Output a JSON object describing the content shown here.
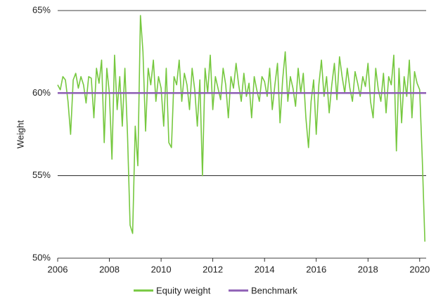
{
  "chart_data": {
    "type": "line",
    "ylabel": "Weight",
    "xlim": [
      2006,
      2020.25
    ],
    "xticks": [
      2006,
      2008,
      2010,
      2012,
      2014,
      2016,
      2018,
      2020
    ],
    "ylim": [
      50,
      65
    ],
    "yticks": [
      {
        "value": 50,
        "label": "50%"
      },
      {
        "value": 55,
        "label": "55%"
      },
      {
        "value": 60,
        "label": "60%"
      },
      {
        "value": 65,
        "label": "65%"
      }
    ],
    "grid": true,
    "legend": "bottom",
    "series": [
      {
        "name": "Equity weight",
        "color": "#76c83f",
        "x": [
          2006.0,
          2006.1,
          2006.2,
          2006.3,
          2006.4,
          2006.5,
          2006.6,
          2006.7,
          2006.8,
          2006.9,
          2007.0,
          2007.1,
          2007.2,
          2007.3,
          2007.4,
          2007.5,
          2007.6,
          2007.7,
          2007.8,
          2007.9,
          2008.0,
          2008.1,
          2008.2,
          2008.3,
          2008.4,
          2008.5,
          2008.6,
          2008.7,
          2008.8,
          2008.9,
          2009.0,
          2009.1,
          2009.2,
          2009.3,
          2009.4,
          2009.5,
          2009.6,
          2009.7,
          2009.8,
          2009.9,
          2010.0,
          2010.1,
          2010.2,
          2010.3,
          2010.4,
          2010.5,
          2010.6,
          2010.7,
          2010.8,
          2010.9,
          2011.0,
          2011.1,
          2011.2,
          2011.3,
          2011.4,
          2011.5,
          2011.6,
          2011.7,
          2011.8,
          2011.9,
          2012.0,
          2012.1,
          2012.2,
          2012.3,
          2012.4,
          2012.5,
          2012.6,
          2012.7,
          2012.8,
          2012.9,
          2013.0,
          2013.1,
          2013.2,
          2013.3,
          2013.4,
          2013.5,
          2013.6,
          2013.7,
          2013.8,
          2013.9,
          2014.0,
          2014.1,
          2014.2,
          2014.3,
          2014.4,
          2014.5,
          2014.6,
          2014.7,
          2014.8,
          2014.9,
          2015.0,
          2015.1,
          2015.2,
          2015.3,
          2015.4,
          2015.5,
          2015.6,
          2015.7,
          2015.8,
          2015.9,
          2016.0,
          2016.1,
          2016.2,
          2016.3,
          2016.4,
          2016.5,
          2016.6,
          2016.7,
          2016.8,
          2016.9,
          2017.0,
          2017.1,
          2017.2,
          2017.3,
          2017.4,
          2017.5,
          2017.6,
          2017.7,
          2017.8,
          2017.9,
          2018.0,
          2018.1,
          2018.2,
          2018.3,
          2018.4,
          2018.5,
          2018.6,
          2018.7,
          2018.8,
          2018.9,
          2019.0,
          2019.1,
          2019.2,
          2019.3,
          2019.4,
          2019.5,
          2019.6,
          2019.7,
          2019.8,
          2019.9,
          2020.0,
          2020.1,
          2020.2
        ],
        "values": [
          60.5,
          60.2,
          61,
          60.8,
          59.5,
          57.5,
          60.8,
          61.2,
          60.3,
          61,
          60.5,
          59.4,
          61,
          60.9,
          58.5,
          61.5,
          60.6,
          62,
          57,
          61.5,
          60,
          56,
          62.3,
          59,
          61,
          58,
          61.5,
          57.5,
          52,
          51.5,
          58,
          55.6,
          64.7,
          62.5,
          57.7,
          61.5,
          60.5,
          62,
          59.5,
          61,
          60.3,
          58,
          61.5,
          57,
          56.7,
          61,
          60.5,
          62,
          59.5,
          61.2,
          60.5,
          59,
          61.5,
          60.2,
          58,
          60.8,
          55,
          61.5,
          60,
          62.3,
          59,
          61,
          60.3,
          59.6,
          61.5,
          60.5,
          58.5,
          61,
          60.3,
          61.8,
          60.5,
          59.5,
          61.2,
          59.8,
          60.6,
          58.5,
          61,
          60.2,
          59.5,
          61,
          60.7,
          59.8,
          61.5,
          59,
          60.5,
          61.8,
          58.2,
          60.8,
          62.5,
          59.5,
          61,
          60.3,
          59.2,
          61.5,
          60,
          61.2,
          58.5,
          56.7,
          59.5,
          60.8,
          57.5,
          60.5,
          62,
          59.8,
          61,
          58.8,
          60.5,
          61.8,
          59.6,
          62.2,
          61,
          60,
          61.5,
          60.3,
          59.5,
          61.3,
          60.6,
          59.8,
          61,
          60.4,
          61.8,
          59.5,
          58.5,
          61.5,
          60.2,
          59.5,
          61.2,
          58.8,
          61,
          60.5,
          62.3,
          56.5,
          61.5,
          58.2,
          61,
          59.8,
          62,
          58.5,
          61.3,
          60.6,
          60.2,
          56,
          51
        ]
      },
      {
        "name": "Benchmark",
        "color": "#8e5fb5",
        "x": [
          2006,
          2020.25
        ],
        "values": [
          60,
          60
        ]
      }
    ]
  }
}
